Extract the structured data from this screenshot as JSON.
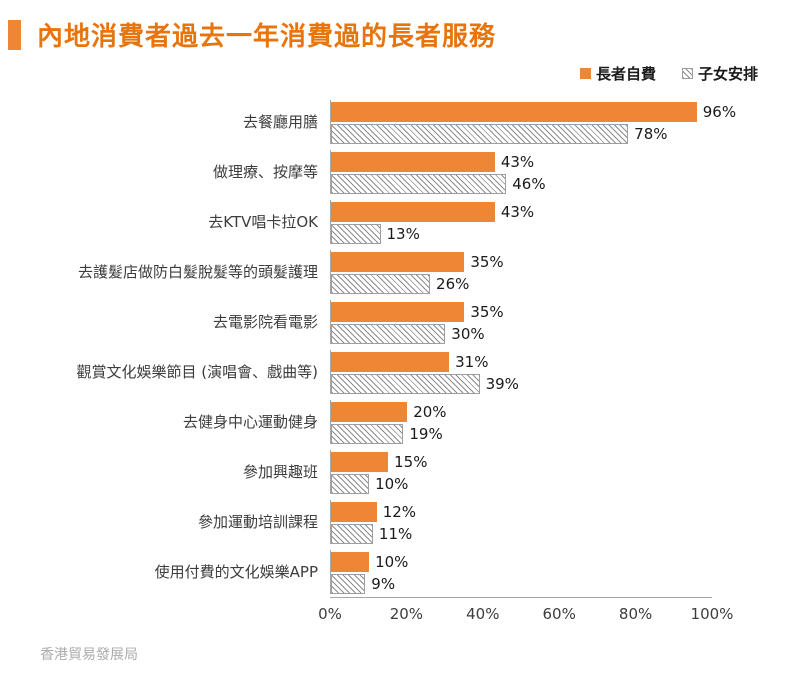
{
  "header": {
    "title": "內地消費者過去一年消費過的長者服務"
  },
  "legend": {
    "series1": "長者自費",
    "series2": "子女安排"
  },
  "footer": {
    "source": "香港貿易發展局"
  },
  "colors": {
    "accent_orange": "#ED8733",
    "title_orange": "#E8740C",
    "hatch_line_gray": "#8C8C8C",
    "axis_gray": "#A6A6A6",
    "footer_gray": "#ACACAC"
  },
  "chart_data": {
    "type": "bar",
    "orientation": "horizontal",
    "title": "內地消費者過去一年消費過的長者服務",
    "categories": [
      "去餐廳用膳",
      "做理療、按摩等",
      "去KTV唱卡拉OK",
      "去護髮店做防白髮脫髮等的頭髮護理",
      "去電影院看電影",
      "觀賞文化娛樂節目 (演唱會、戲曲等)",
      "去健身中心運動健身",
      "參加興趣班",
      "參加運動培訓課程",
      "使用付費的文化娛樂APP"
    ],
    "series": [
      {
        "name": "長者自費",
        "style": "solid-orange",
        "values": [
          96,
          43,
          43,
          35,
          35,
          31,
          20,
          15,
          12,
          10
        ]
      },
      {
        "name": "子女安排",
        "style": "gray-hatched",
        "values": [
          78,
          46,
          13,
          26,
          30,
          39,
          19,
          10,
          11,
          9
        ]
      }
    ],
    "value_suffix": "%",
    "xlim": [
      0,
      100
    ],
    "xticks": [
      "0%",
      "20%",
      "40%",
      "60%",
      "80%",
      "100%"
    ],
    "legend_position": "top-right",
    "grid": false
  }
}
